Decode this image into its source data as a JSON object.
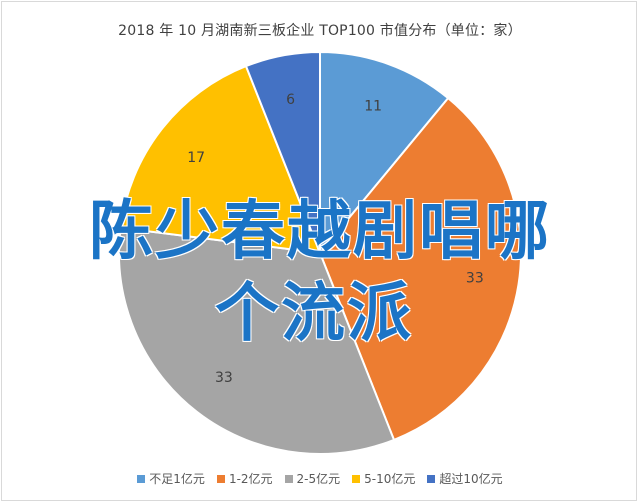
{
  "chart_data": {
    "type": "pie",
    "title": "2018 年 10 月湖南新三板企业 TOP100 市值分布（单位：家）",
    "categories": [
      "不足1亿元",
      "1-2亿元",
      "2-5亿元",
      "5-10亿元",
      "超过10亿元"
    ],
    "values": [
      11,
      33,
      33,
      17,
      6
    ],
    "colors": [
      "#5b9bd5",
      "#ed7d31",
      "#a5a5a5",
      "#ffc000",
      "#4472c4"
    ],
    "legend": "bottom"
  },
  "watermark": {
    "line1": "陈少春越剧唱哪",
    "line2": "个流派"
  }
}
